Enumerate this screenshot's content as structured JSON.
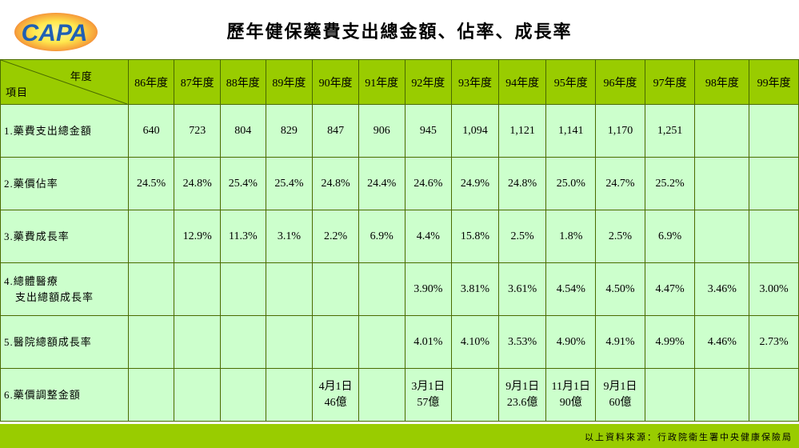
{
  "logo": {
    "text": "CAPA",
    "colors": {
      "blue": "#1f5fb4",
      "yellow": "#ffe84d",
      "red": "#e8332a"
    }
  },
  "title": "歷年健保藥費支出總金額、佔率、成長率",
  "table": {
    "corner_year": "年度",
    "corner_item": "項目",
    "years": [
      "86年度",
      "87年度",
      "88年度",
      "89年度",
      "90年度",
      "91年度",
      "92年度",
      "93年度",
      "94年度",
      "95年度",
      "96年度",
      "97年度",
      "98年度",
      "99年度"
    ],
    "rows": [
      {
        "label": [
          "1.藥費支出總金額"
        ],
        "cells": [
          [
            "640"
          ],
          [
            "723"
          ],
          [
            "804"
          ],
          [
            "829"
          ],
          [
            "847"
          ],
          [
            "906"
          ],
          [
            "945"
          ],
          [
            "1,094"
          ],
          [
            "1,121"
          ],
          [
            "1,141"
          ],
          [
            "1,170"
          ],
          [
            "1,251"
          ],
          [],
          []
        ]
      },
      {
        "label": [
          "2.藥價佔率"
        ],
        "cells": [
          [
            "24.5%"
          ],
          [
            "24.8%"
          ],
          [
            "25.4%"
          ],
          [
            "25.4%"
          ],
          [
            "24.8%"
          ],
          [
            "24.4%"
          ],
          [
            "24.6%"
          ],
          [
            "24.9%"
          ],
          [
            "24.8%"
          ],
          [
            "25.0%"
          ],
          [
            "24.7%"
          ],
          [
            "25.2%"
          ],
          [],
          []
        ]
      },
      {
        "label": [
          "3.藥費成長率"
        ],
        "cells": [
          [],
          [
            "12.9%"
          ],
          [
            "11.3%"
          ],
          [
            "3.1%"
          ],
          [
            "2.2%"
          ],
          [
            "6.9%"
          ],
          [
            "4.4%"
          ],
          [
            "15.8%"
          ],
          [
            "2.5%"
          ],
          [
            "1.8%"
          ],
          [
            "2.5%"
          ],
          [
            "6.9%"
          ],
          [],
          []
        ]
      },
      {
        "label": [
          "4.總體醫療",
          "　支出總額成長率"
        ],
        "cells": [
          [],
          [],
          [],
          [],
          [],
          [],
          [
            "3.90%"
          ],
          [
            "3.81%"
          ],
          [
            "3.61%"
          ],
          [
            "4.54%"
          ],
          [
            "4.50%"
          ],
          [
            "4.47%"
          ],
          [
            "3.46%"
          ],
          [
            "3.00%"
          ]
        ]
      },
      {
        "label": [
          "5.醫院總額成長率"
        ],
        "cells": [
          [],
          [],
          [],
          [],
          [],
          [],
          [
            "4.01%"
          ],
          [
            "4.10%"
          ],
          [
            "3.53%"
          ],
          [
            "4.90%"
          ],
          [
            "4.91%"
          ],
          [
            "4.99%"
          ],
          [
            "4.46%"
          ],
          [
            "2.73%"
          ]
        ]
      },
      {
        "label": [
          "6.藥價調整金額"
        ],
        "cells": [
          [],
          [],
          [],
          [],
          [
            "4月1日",
            "46億"
          ],
          [],
          [
            "3月1日",
            "57億"
          ],
          [],
          [
            "9月1日",
            "23.6億"
          ],
          [
            "11月1日",
            "90億"
          ],
          [
            "9月1日",
            "60億"
          ],
          [],
          [],
          []
        ]
      }
    ]
  },
  "source": "以上資料來源：行政院衛生署中央健康保險局",
  "colors": {
    "header_green": "#99cc00",
    "cell_green": "#ccffcc",
    "label_yellow": "#ffff00",
    "border": "#4a6b00"
  }
}
